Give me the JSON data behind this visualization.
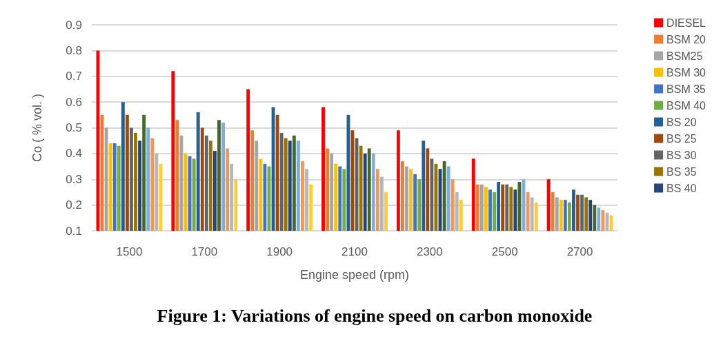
{
  "chart_data": {
    "type": "bar",
    "title": "Figure 1: Variations of engine speed on carbon monoxide",
    "xlabel": "Engine speed (rpm)",
    "ylabel": "Co ( % vol. )",
    "categories": [
      "1500",
      "1700",
      "1900",
      "2100",
      "2300",
      "2500",
      "2700"
    ],
    "ylim": [
      0.1,
      0.9
    ],
    "yticks": [
      0.1,
      0.2,
      0.3,
      0.4,
      0.5,
      0.6,
      0.7,
      0.8,
      0.9
    ],
    "grid": "y",
    "legend": "right",
    "series": [
      {
        "name": "DIESEL",
        "color": "#ff0000",
        "values": [
          0.8,
          0.72,
          0.65,
          0.58,
          0.49,
          0.38,
          0.3
        ]
      },
      {
        "name": "BSM 20",
        "color": "#ed7d31",
        "values": [
          0.55,
          0.53,
          0.49,
          0.42,
          0.37,
          0.28,
          0.25
        ]
      },
      {
        "name": "BSM25",
        "color": "#a5a5a5",
        "values": [
          0.5,
          0.47,
          0.45,
          0.4,
          0.35,
          0.28,
          0.23
        ]
      },
      {
        "name": "BSM 30",
        "color": "#ffc000",
        "values": [
          0.44,
          0.4,
          0.38,
          0.36,
          0.34,
          0.27,
          0.22
        ]
      },
      {
        "name": "BSM 35",
        "color": "#4472c4",
        "values": [
          0.44,
          0.39,
          0.36,
          0.35,
          0.32,
          0.26,
          0.22
        ]
      },
      {
        "name": "BSM 40",
        "color": "#70ad47",
        "values": [
          0.43,
          0.38,
          0.35,
          0.34,
          0.3,
          0.25,
          0.21
        ]
      },
      {
        "name": "BS 20",
        "color": "#255e91",
        "values": [
          0.6,
          0.56,
          0.58,
          0.55,
          0.45,
          0.29,
          0.26
        ]
      },
      {
        "name": "BS 25",
        "color": "#9e480e",
        "values": [
          0.55,
          0.5,
          0.55,
          0.49,
          0.42,
          0.28,
          0.24
        ]
      },
      {
        "name": "BS 30",
        "color": "#636363",
        "values": [
          0.5,
          0.47,
          0.48,
          0.46,
          0.38,
          0.28,
          0.24
        ]
      },
      {
        "name": "BS 35",
        "color": "#997300",
        "values": [
          0.48,
          0.45,
          0.46,
          0.43,
          0.36,
          0.27,
          0.23
        ]
      },
      {
        "name": "BS 40",
        "color": "#264478",
        "values": [
          0.45,
          0.41,
          0.45,
          0.4,
          0.34,
          0.26,
          0.22
        ]
      },
      {
        "color": "#43682b",
        "values": [
          0.55,
          0.53,
          0.47,
          0.42,
          0.37,
          0.29,
          0.2
        ]
      },
      {
        "color": "#7cafdd",
        "values": [
          0.5,
          0.52,
          0.45,
          0.4,
          0.35,
          0.3,
          0.19
        ]
      },
      {
        "color": "#f1975a",
        "values": [
          0.46,
          0.42,
          0.37,
          0.34,
          0.3,
          0.25,
          0.18
        ]
      },
      {
        "color": "#b7b7b7",
        "values": [
          0.4,
          0.36,
          0.34,
          0.31,
          0.25,
          0.23,
          0.17
        ]
      },
      {
        "color": "#ffcd33",
        "values": [
          0.36,
          0.3,
          0.28,
          0.25,
          0.22,
          0.21,
          0.16
        ]
      }
    ]
  }
}
